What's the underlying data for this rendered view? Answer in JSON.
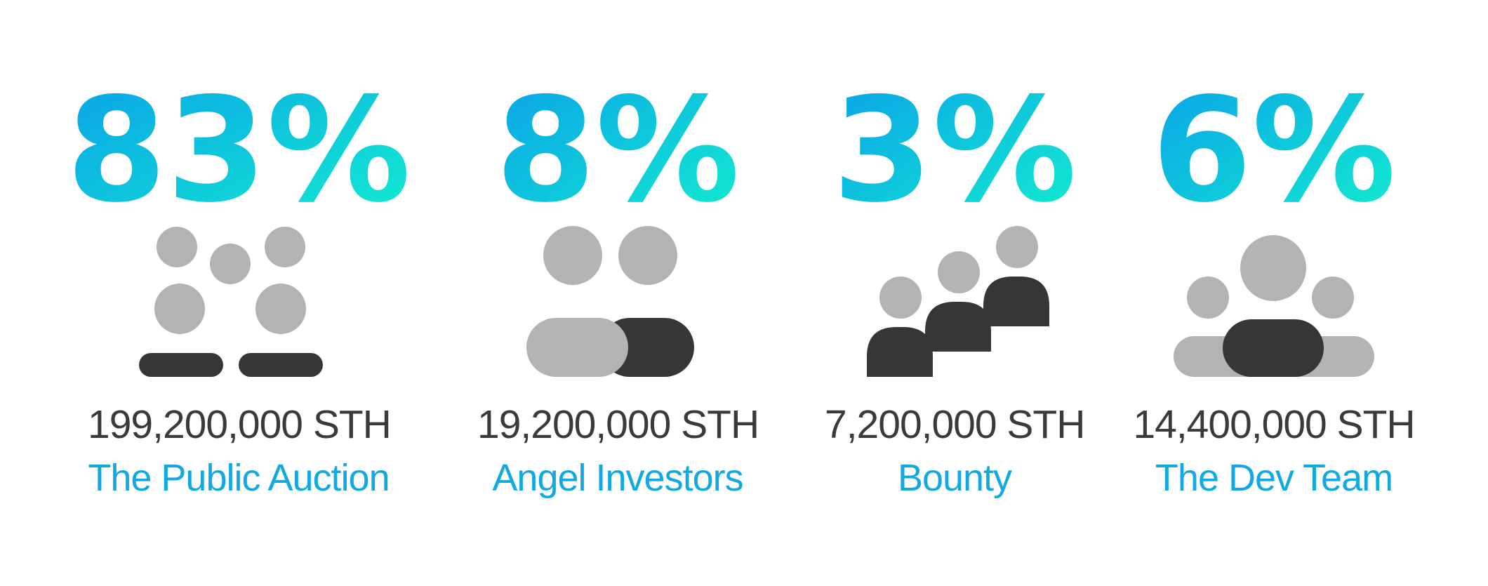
{
  "colors": {
    "gradient_start": "#0aa0e8",
    "gradient_end": "#12efcf",
    "amount_text": "#3a3a3a",
    "label_text": "#12a9e3",
    "icon_light": "#b3b3b3",
    "icon_dark": "#363636"
  },
  "items": [
    {
      "percent": "83%",
      "amount": "199,200,000 STH",
      "label": "The Public Auction",
      "icon": "coins-icon"
    },
    {
      "percent": "8%",
      "amount": "19,200,000 STH",
      "label": "Angel Investors",
      "icon": "two-people-icon"
    },
    {
      "percent": "3%",
      "amount": "7,200,000 STH",
      "label": "Bounty",
      "icon": "three-people-steps-icon"
    },
    {
      "percent": "6%",
      "amount": "14,400,000 STH",
      "label": "The Dev Team",
      "icon": "team-icon"
    }
  ]
}
